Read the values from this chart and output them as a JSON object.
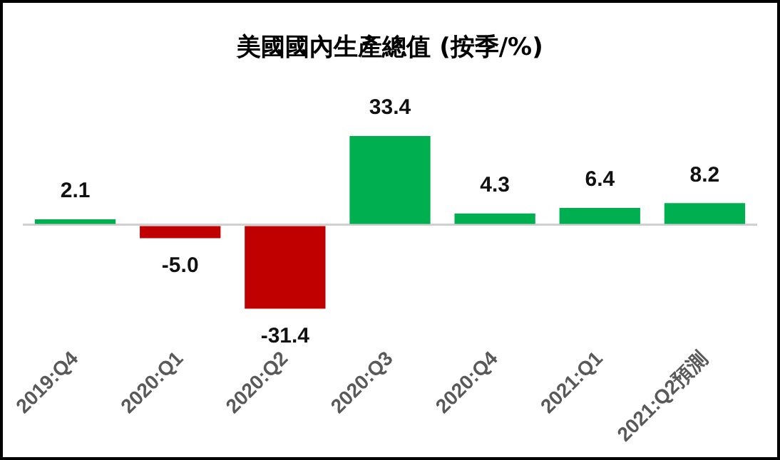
{
  "chart_data": {
    "type": "bar",
    "title": "美國國內生產總值 (按季/%)",
    "categories": [
      "2019:Q4",
      "2020:Q1",
      "2020:Q2",
      "2020:Q3",
      "2020:Q4",
      "2021:Q1",
      "2021:Q2預測"
    ],
    "values": [
      2.1,
      -5.0,
      -31.4,
      33.4,
      4.3,
      6.4,
      8.2
    ],
    "colors": [
      "#00b050",
      "#c00000",
      "#c00000",
      "#00b050",
      "#00b050",
      "#00b050",
      "#00b050"
    ],
    "data_labels": true,
    "value_labels": [
      "2.1",
      "-5.0",
      "-31.4",
      "33.4",
      "4.3",
      "6.4",
      "8.2"
    ],
    "legend": false,
    "grid": false
  }
}
